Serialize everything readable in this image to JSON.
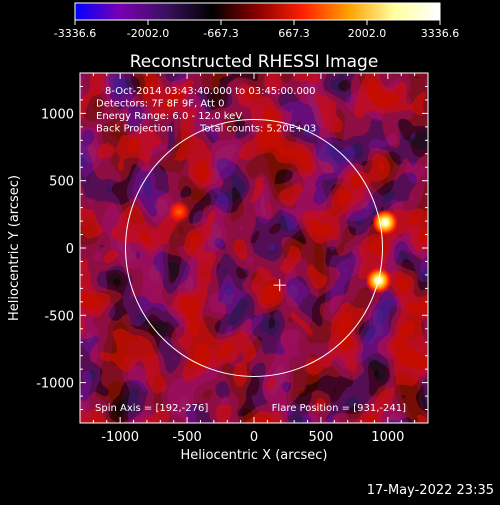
{
  "chart_data": {
    "type": "heatmap",
    "title": "Reconstructed RHESSI Image",
    "xlabel": "Heliocentric X (arcsec)",
    "ylabel": "Heliocentric Y (arcsec)",
    "xlim": [
      -1300,
      1300
    ],
    "ylim": [
      -1300,
      1300
    ],
    "xticks": [
      "-1000",
      "-500",
      "0",
      "500",
      "1000"
    ],
    "yticks": [
      "1000",
      "500",
      "0",
      "-500",
      "-1000"
    ],
    "xtick_values": [
      -1000,
      -500,
      0,
      500,
      1000
    ],
    "ytick_values": [
      1000,
      500,
      0,
      -500,
      -1000
    ],
    "colorbar": {
      "min": -3336.6,
      "max": 3336.6,
      "ticks": [
        "-3336.6",
        "-2002.0",
        "-667.3",
        "667.3",
        "2002.0",
        "3336.6"
      ],
      "tick_values": [
        -3336.6,
        -2002.0,
        -667.3,
        667.3,
        2002.0,
        3336.6
      ],
      "colors": [
        "#0000ff",
        "#7a00b0",
        "#3a1060",
        "#000000",
        "#8a0000",
        "#ff2000",
        "#ffa000",
        "#ffffa0",
        "#ffffff"
      ]
    },
    "annotations": [
      "8-Oct-2014 03:43:40.000 to 03:45:00.000",
      "Detectors: 7F 8F 9F, Att 0",
      "Energy Range: 6.0 - 12.0 keV",
      "Back Projection",
      "Total counts: 5.20E+03"
    ],
    "footer_left": "Spin Axis = [192,-276]",
    "footer_right": "Flare Position = [931,-241]",
    "solar_disk": {
      "center": [
        0,
        0
      ],
      "radius": 960
    },
    "center_marker": [
      192,
      -276
    ],
    "bright_sources": [
      {
        "x": 980,
        "y": 190,
        "intensity": 2900
      },
      {
        "x": 931,
        "y": -241,
        "intensity": 3336.6
      },
      {
        "x": -560,
        "y": 270,
        "intensity": 1800
      }
    ]
  },
  "timestamp": "17-May-2022 23:35"
}
